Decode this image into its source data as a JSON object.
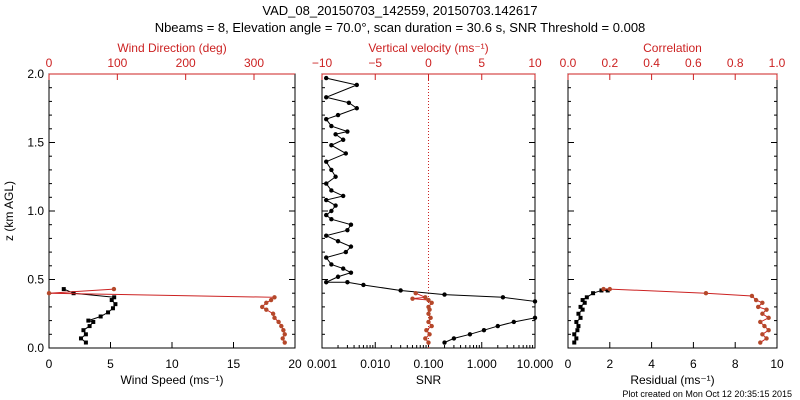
{
  "title_line1": "VAD_08_20150703_142559, 20150703.142617",
  "title_line2": "Nbeams = 8, Elevation angle = 70.0°, scan duration = 30.6 s, SNR Threshold = 0.008",
  "footer": "Plot created on Mon Oct 12 20:35:15 2015",
  "colors": {
    "black": "#000000",
    "red": "#cc2222",
    "brown": "#b5482a"
  },
  "chart_data": [
    {
      "type": "line",
      "panel": "wind",
      "ylabel": "z (km AGL)",
      "ylim": [
        0,
        2
      ],
      "yticks": [
        "0.0",
        "0.5",
        "1.0",
        "1.5",
        "2.0"
      ],
      "bottom_axis": {
        "label": "Wind Speed (ms⁻¹)",
        "range": [
          0,
          20
        ],
        "ticks": [
          "0",
          "5",
          "10",
          "15",
          "20"
        ],
        "tick_values": [
          0,
          5,
          10,
          15,
          20
        ]
      },
      "top_axis": {
        "label": "Wind Direction (deg)",
        "range": [
          0,
          360
        ],
        "ticks": [
          "0",
          "100",
          "200",
          "300"
        ],
        "tick_values": [
          0,
          100,
          200,
          300
        ]
      },
      "series": [
        {
          "name": "Wind Speed",
          "axis": "bottom",
          "color": "#000000",
          "marker": "square",
          "points": [
            [
              3.0,
              0.04
            ],
            [
              2.6,
              0.07
            ],
            [
              3.0,
              0.1
            ],
            [
              2.8,
              0.13
            ],
            [
              3.3,
              0.16
            ],
            [
              3.6,
              0.19
            ],
            [
              3.2,
              0.2
            ],
            [
              4.2,
              0.23
            ],
            [
              4.8,
              0.26
            ],
            [
              5.2,
              0.29
            ],
            [
              5.4,
              0.32
            ],
            [
              5.1,
              0.35
            ],
            [
              5.3,
              0.37
            ],
            [
              2.0,
              0.4
            ],
            [
              1.2,
              0.43
            ]
          ]
        },
        {
          "name": "Wind Direction",
          "axis": "top",
          "color": "#b5482a",
          "marker": "circle",
          "points": [
            [
              345,
              0.04
            ],
            [
              342,
              0.07
            ],
            [
              345,
              0.1
            ],
            [
              343,
              0.13
            ],
            [
              340,
              0.16
            ],
            [
              336,
              0.19
            ],
            [
              330,
              0.22
            ],
            [
              328,
              0.25
            ],
            [
              318,
              0.28
            ],
            [
              312,
              0.3
            ],
            [
              318,
              0.33
            ],
            [
              325,
              0.35
            ],
            [
              330,
              0.37
            ],
            [
              0,
              0.4
            ],
            [
              95,
              0.43
            ]
          ]
        }
      ]
    },
    {
      "type": "line",
      "panel": "snr",
      "ylim": [
        0,
        2
      ],
      "bottom_axis": {
        "label": "SNR",
        "scale": "log",
        "range": [
          0.001,
          10
        ],
        "ticks": [
          "0.001",
          "0.010",
          "0.100",
          "1.000",
          "10.000"
        ],
        "tick_values": [
          0.001,
          0.01,
          0.1,
          1,
          10
        ]
      },
      "top_axis": {
        "label": "Vertical velocity (ms⁻¹)",
        "range": [
          -10,
          10
        ],
        "ticks": [
          "−10",
          "−5",
          "0",
          "5",
          "10"
        ],
        "tick_values": [
          -10,
          -5,
          0,
          5,
          10
        ]
      },
      "reference_line": {
        "axis": "top",
        "value": 0,
        "style": "dotted"
      },
      "series": [
        {
          "name": "SNR",
          "axis": "bottom",
          "color": "#000000",
          "marker": "circle",
          "points": [
            [
              0.2,
              0.04
            ],
            [
              0.3,
              0.07
            ],
            [
              0.6,
              0.1
            ],
            [
              1.1,
              0.13
            ],
            [
              2.0,
              0.16
            ],
            [
              4.0,
              0.19
            ],
            [
              10,
              0.22
            ],
            [
              10,
              0.34
            ],
            [
              2.5,
              0.37
            ],
            [
              0.2,
              0.39
            ],
            [
              0.03,
              0.42
            ],
            [
              0.006,
              0.46
            ],
            [
              0.003,
              0.48
            ],
            [
              0.0012,
              0.48
            ],
            [
              0.002,
              0.52
            ],
            [
              0.0035,
              0.55
            ],
            [
              0.0025,
              0.58
            ],
            [
              0.0015,
              0.61
            ],
            [
              0.0012,
              0.66
            ],
            [
              0.0028,
              0.7
            ],
            [
              0.0035,
              0.74
            ],
            [
              0.002,
              0.78
            ],
            [
              0.0012,
              0.82
            ],
            [
              0.003,
              0.86
            ],
            [
              0.0035,
              0.9
            ],
            [
              0.0015,
              0.94
            ],
            [
              0.0012,
              0.97
            ],
            [
              0.0015,
              1.0
            ],
            [
              0.0018,
              1.04
            ],
            [
              0.0012,
              1.08
            ],
            [
              0.0025,
              1.11
            ],
            [
              0.0015,
              1.15
            ],
            [
              0.0012,
              1.2
            ],
            [
              0.0018,
              1.25
            ],
            [
              0.0015,
              1.3
            ],
            [
              0.0012,
              1.36
            ],
            [
              0.0028,
              1.42
            ],
            [
              0.0015,
              1.48
            ],
            [
              0.0025,
              1.52
            ],
            [
              0.0018,
              1.56
            ],
            [
              0.003,
              1.58
            ],
            [
              0.0015,
              1.62
            ],
            [
              0.0012,
              1.67
            ],
            [
              0.002,
              1.7
            ],
            [
              0.0045,
              1.75
            ],
            [
              0.0032,
              1.79
            ],
            [
              0.0012,
              1.83
            ],
            [
              0.0045,
              1.92
            ],
            [
              0.0012,
              1.97
            ]
          ]
        },
        {
          "name": "Vertical velocity",
          "axis": "top",
          "color": "#b5482a",
          "marker": "circle",
          "points": [
            [
              0.0,
              0.04
            ],
            [
              -0.3,
              0.07
            ],
            [
              0.1,
              0.1
            ],
            [
              -0.2,
              0.13
            ],
            [
              0.3,
              0.16
            ],
            [
              0.0,
              0.19
            ],
            [
              0.2,
              0.22
            ],
            [
              0.0,
              0.25
            ],
            [
              0.1,
              0.28
            ],
            [
              0.0,
              0.3
            ],
            [
              0.3,
              0.33
            ],
            [
              0.0,
              0.35
            ],
            [
              -1.5,
              0.36
            ],
            [
              -0.3,
              0.37
            ],
            [
              -1.2,
              0.4
            ]
          ]
        }
      ]
    },
    {
      "type": "line",
      "panel": "residual",
      "ylim": [
        0,
        2
      ],
      "bottom_axis": {
        "label": "Residual (ms⁻¹)",
        "range": [
          0,
          10
        ],
        "ticks": [
          "0",
          "2",
          "4",
          "6",
          "8",
          "10"
        ],
        "tick_values": [
          0,
          2,
          4,
          6,
          8,
          10
        ]
      },
      "top_axis": {
        "label": "Correlation",
        "range": [
          0,
          1
        ],
        "ticks": [
          "0.0",
          "0.2",
          "0.4",
          "0.6",
          "0.8",
          "1.0"
        ],
        "tick_values": [
          0,
          0.2,
          0.4,
          0.6,
          0.8,
          1.0
        ]
      },
      "series": [
        {
          "name": "Residual",
          "axis": "bottom",
          "color": "#000000",
          "marker": "square",
          "points": [
            [
              0.3,
              0.04
            ],
            [
              0.4,
              0.07
            ],
            [
              0.3,
              0.1
            ],
            [
              0.45,
              0.13
            ],
            [
              0.5,
              0.16
            ],
            [
              0.4,
              0.19
            ],
            [
              0.6,
              0.22
            ],
            [
              0.5,
              0.25
            ],
            [
              0.7,
              0.28
            ],
            [
              0.6,
              0.3
            ],
            [
              0.8,
              0.33
            ],
            [
              0.7,
              0.35
            ],
            [
              0.9,
              0.37
            ],
            [
              1.2,
              0.4
            ],
            [
              1.6,
              0.42
            ],
            [
              1.9,
              0.42
            ]
          ]
        },
        {
          "name": "Correlation",
          "axis": "top",
          "color": "#b5482a",
          "marker": "circle",
          "points": [
            [
              0.92,
              0.04
            ],
            [
              0.95,
              0.07
            ],
            [
              0.93,
              0.1
            ],
            [
              0.96,
              0.13
            ],
            [
              0.94,
              0.16
            ],
            [
              0.92,
              0.19
            ],
            [
              0.96,
              0.22
            ],
            [
              0.93,
              0.25
            ],
            [
              0.95,
              0.28
            ],
            [
              0.91,
              0.3
            ],
            [
              0.93,
              0.33
            ],
            [
              0.9,
              0.35
            ],
            [
              0.88,
              0.38
            ],
            [
              0.66,
              0.4
            ],
            [
              0.2,
              0.43
            ],
            [
              0.17,
              0.43
            ]
          ]
        }
      ]
    }
  ]
}
